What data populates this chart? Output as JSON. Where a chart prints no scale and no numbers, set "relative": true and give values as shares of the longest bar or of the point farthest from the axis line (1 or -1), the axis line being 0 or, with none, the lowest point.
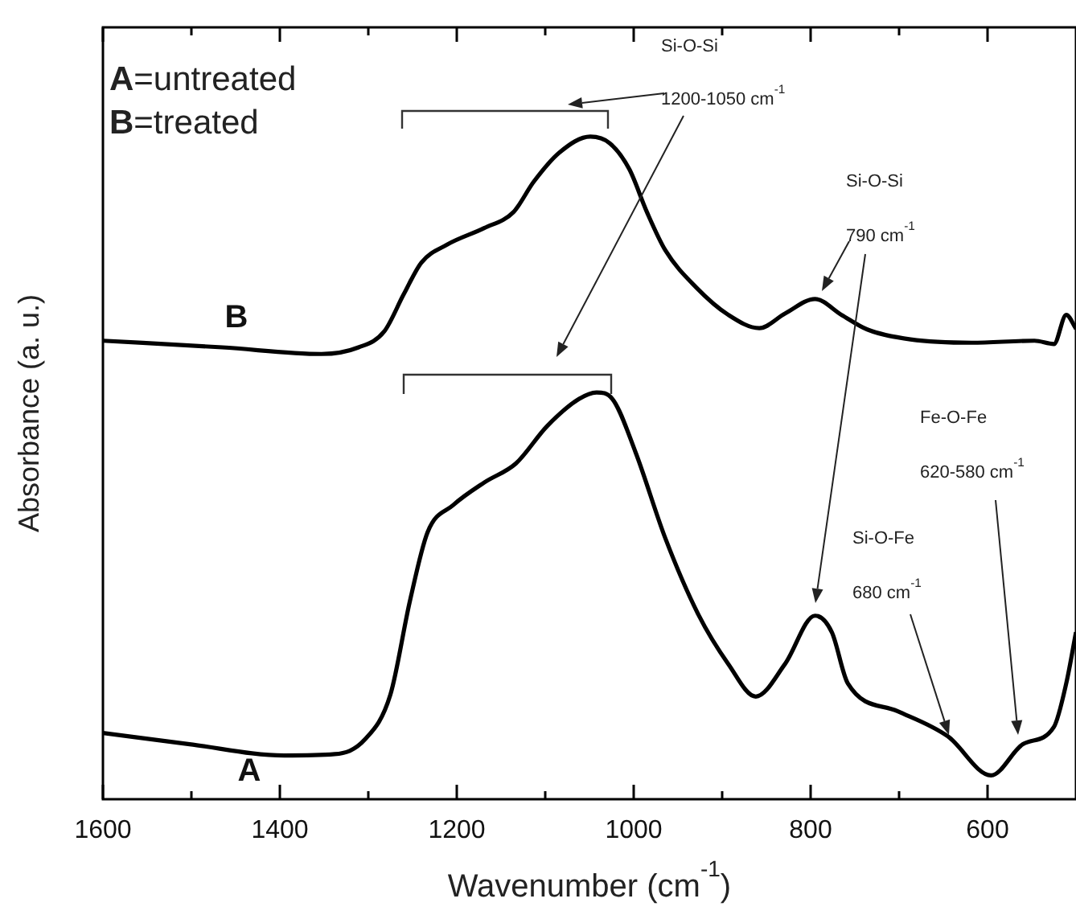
{
  "chart_data": {
    "type": "line",
    "relative": true,
    "xlabel": "Wavenumber (cm$^{-1}$)",
    "ylabel": "Absorbance (a. u.)",
    "xlim": [
      1600,
      500
    ],
    "xticks": [
      1600,
      {
        "value": 1500,
        "label": null
      },
      1400,
      {
        "value": 1300,
        "label": null
      },
      1200,
      {
        "value": 1100,
        "label": null
      },
      1000,
      {
        "value": 900,
        "label": null
      },
      800,
      {
        "value": 700,
        "label": null
      },
      600
    ],
    "grid": false,
    "legend": false,
    "marker": "none",
    "line_style": "solid",
    "annotations": [
      "A=untreated",
      "B=treated",
      "Si-O-Si",
      "1200-1050 cm$^{-1}$",
      "Si-O-Si",
      "790 cm$^{-1}$",
      "Fe-O-Fe",
      "620-580 cm$^{-1}$",
      "Si-O-Fe",
      "680 cm$^{-1}$"
    ],
    "series": [
      {
        "name": "A",
        "color": "#000000",
        "x": [
          1600,
          1502,
          1395,
          1338,
          1304,
          1275,
          1253,
          1233,
          1204,
          1169,
          1133,
          1098,
          1062,
          1042,
          1024,
          998,
          964,
          927,
          893,
          862,
          829,
          795,
          776,
          758,
          702,
          645,
          596,
          560,
          525,
          511,
          500
        ],
        "values": [
          0.1,
          0.083,
          0.066,
          0.068,
          0.09,
          0.158,
          0.299,
          0.403,
          0.444,
          0.478,
          0.507,
          0.563,
          0.604,
          0.614,
          0.604,
          0.524,
          0.393,
          0.279,
          0.204,
          0.155,
          0.204,
          0.277,
          0.252,
          0.175,
          0.133,
          0.095,
          0.036,
          0.083,
          0.109,
          0.175,
          0.252
        ]
      },
      {
        "name": "B",
        "color": "#000000",
        "x": [
          1600,
          1465,
          1353,
          1311,
          1282,
          1260,
          1240,
          1211,
          1169,
          1136,
          1113,
          1084,
          1049,
          1027,
          1005,
          985,
          964,
          929,
          893,
          858,
          829,
          795,
          765,
          736,
          687,
          618,
          547,
          525,
          511,
          500
        ],
        "values": [
          0.692,
          0.682,
          0.672,
          0.682,
          0.706,
          0.762,
          0.81,
          0.837,
          0.862,
          0.886,
          0.932,
          0.976,
          1,
          0.99,
          0.951,
          0.886,
          0.828,
          0.772,
          0.731,
          0.711,
          0.733,
          0.755,
          0.731,
          0.709,
          0.694,
          0.689,
          0.692,
          0.687,
          0.731,
          0.71
        ]
      }
    ]
  }
}
